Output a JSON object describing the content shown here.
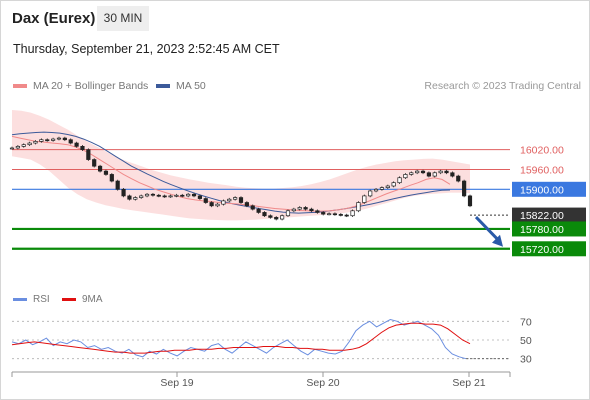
{
  "header": {
    "title": "Dax (Eurex)",
    "timeframe": "30 MIN",
    "timestamp": "Thursday, September 21, 2023 2:52:45 AM CET"
  },
  "legend": {
    "ma20_label": "MA 20 + Bollinger Bands",
    "ma50_label": "MA 50",
    "credit": "Research © 2023 Trading Central"
  },
  "rsi_legend": {
    "rsi_label": "RSI",
    "ma_label": "9MA"
  },
  "colors": {
    "ma20": "#f08a8a",
    "ma50": "#3c5a9a",
    "bollinger": "#fbd9d9",
    "resistance": "#e06060",
    "pivot": "#3a78e0",
    "support": "#0a8a0a",
    "rsi": "#6a8ee0",
    "rsi_ma": "#e01010",
    "arrow": "#2a5aa8",
    "last": "#333333"
  },
  "chart_data": [
    {
      "type": "candlestick",
      "x_ticks": [
        "Sep 19",
        "Sep 20",
        "Sep 21"
      ],
      "ylim": [
        15680,
        16140
      ],
      "levels": [
        {
          "value": 16020.0,
          "label": "16020.00",
          "kind": "resistance"
        },
        {
          "value": 15960.0,
          "label": "15960.00",
          "kind": "resistance"
        },
        {
          "value": 15900.0,
          "label": "15900.00",
          "kind": "pivot"
        },
        {
          "value": 15822.0,
          "label": "15822.00",
          "kind": "last"
        },
        {
          "value": 15780.0,
          "label": "15780.00",
          "kind": "support"
        },
        {
          "value": 15720.0,
          "label": "15720.00",
          "kind": "support"
        }
      ],
      "close": [
        16025,
        16030,
        16035,
        16040,
        16045,
        16050,
        16048,
        16052,
        16055,
        16050,
        16040,
        16030,
        16020,
        15990,
        15970,
        15955,
        15945,
        15925,
        15900,
        15880,
        15870,
        15875,
        15880,
        15885,
        15882,
        15880,
        15878,
        15880,
        15882,
        15880,
        15885,
        15880,
        15872,
        15860,
        15850,
        15855,
        15865,
        15870,
        15875,
        15860,
        15850,
        15840,
        15830,
        15820,
        15815,
        15810,
        15820,
        15835,
        15840,
        15845,
        15840,
        15835,
        15830,
        15825,
        15826,
        15824,
        15822,
        15820,
        15835,
        15860,
        15880,
        15895,
        15900,
        15905,
        15910,
        15920,
        15935,
        15945,
        15950,
        15955,
        15950,
        15940,
        15950,
        15955,
        15950,
        15940,
        15925,
        15880,
        15850
      ],
      "ma20": [
        16060,
        16055,
        16050,
        16045,
        16043,
        16040,
        16038,
        16035,
        16028,
        16018,
        16005,
        15990,
        15975,
        15960,
        15945,
        15932,
        15920,
        15910,
        15900,
        15892,
        15885,
        15878,
        15872,
        15868,
        15865,
        15863,
        15860,
        15858,
        15856,
        15854,
        15852,
        15848,
        15845,
        15842,
        15840,
        15838,
        15836,
        15835,
        15834,
        15834,
        15835,
        15838,
        15842,
        15848,
        15856,
        15866,
        15876,
        15886,
        15895,
        15903,
        15912,
        15920,
        15930,
        15935,
        15930,
        15915
      ],
      "ma50": [
        16065,
        16068,
        16070,
        16072,
        16073,
        16072,
        16070,
        16066,
        16060,
        16052,
        16042,
        16030,
        16015,
        16000,
        15985,
        15970,
        15958,
        15946,
        15935,
        15924,
        15914,
        15905,
        15896,
        15888,
        15880,
        15873,
        15866,
        15860,
        15855,
        15850,
        15846,
        15842,
        15838,
        15834,
        15831,
        15829,
        15828,
        15829,
        15830,
        15832,
        15835,
        15838,
        15842,
        15846,
        15850,
        15855,
        15860,
        15866,
        15872,
        15877,
        15882,
        15886,
        15890,
        15894,
        15897,
        15898
      ],
      "bb_upper": [
        16140,
        16138,
        16132,
        16122,
        16110,
        16095,
        16080,
        16062,
        16045,
        16030,
        16015,
        16000,
        15988,
        15978,
        15968,
        15958,
        15950,
        15942,
        15936,
        15930,
        15925,
        15920,
        15916,
        15912,
        15908,
        15905,
        15903,
        15902,
        15902,
        15904,
        15906,
        15910,
        15915,
        15922,
        15930,
        15940,
        15950,
        15960,
        15968,
        15975,
        15980,
        15985,
        15988,
        15990,
        15992,
        15993,
        15990,
        15985,
        15980,
        15975
      ],
      "bb_lower": [
        16000,
        15995,
        15990,
        15975,
        15955,
        15930,
        15905,
        15885,
        15870,
        15860,
        15852,
        15846,
        15840,
        15836,
        15832,
        15828,
        15824,
        15820,
        15816,
        15812,
        15810,
        15808,
        15807,
        15806,
        15806,
        15807,
        15808,
        15810,
        15812,
        15814,
        15816,
        15818,
        15820,
        15822,
        15824,
        15826,
        15830,
        15835,
        15842,
        15850,
        15858,
        15866,
        15874,
        15880,
        15884,
        15886,
        15888,
        15890,
        15890,
        15888
      ]
    },
    {
      "type": "line",
      "title": "RSI",
      "y_ticks": [
        30,
        50,
        70
      ],
      "ylim": [
        20,
        80
      ],
      "series": [
        {
          "name": "RSI",
          "values": [
            48,
            46,
            50,
            45,
            48,
            52,
            44,
            48,
            46,
            50,
            48,
            42,
            44,
            40,
            42,
            38,
            36,
            40,
            34,
            32,
            38,
            35,
            40,
            36,
            33,
            38,
            42,
            40,
            38,
            44,
            46,
            40,
            36,
            42,
            48,
            44,
            40,
            36,
            42,
            46,
            50,
            44,
            38,
            34,
            40,
            38,
            36,
            35,
            38,
            48,
            60,
            66,
            70,
            64,
            68,
            72,
            70,
            66,
            68,
            70,
            66,
            62,
            55,
            42,
            35,
            32,
            30
          ]
        },
        {
          "name": "9MA",
          "values": [
            45,
            46,
            47,
            48,
            47,
            46,
            45,
            44,
            43,
            42,
            41,
            40,
            39,
            38,
            37,
            37,
            36,
            36,
            36,
            37,
            38,
            38,
            39,
            39,
            39,
            40,
            40,
            40,
            41,
            41,
            42,
            42,
            42,
            42,
            43,
            43,
            43,
            42,
            42,
            41,
            41,
            40,
            40,
            39,
            39,
            39,
            40,
            42,
            46,
            52,
            58,
            63,
            66,
            67,
            68,
            68,
            67,
            67,
            66,
            62,
            56,
            50,
            46
          ]
        }
      ]
    }
  ]
}
